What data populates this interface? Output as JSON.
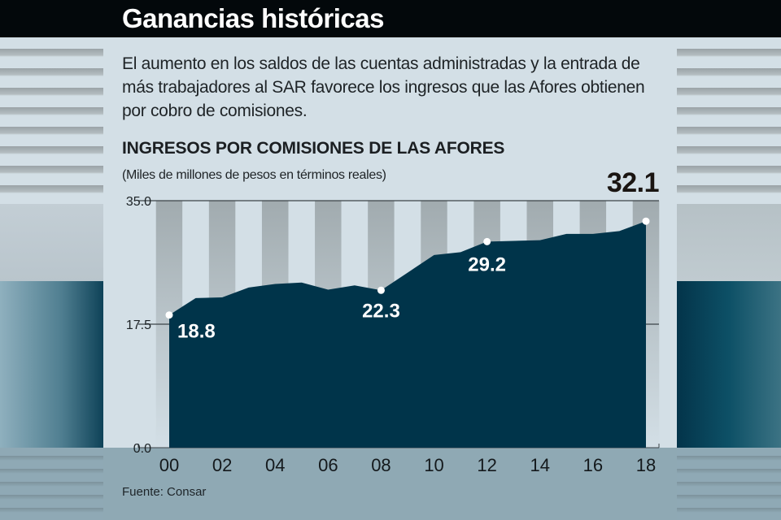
{
  "header": {
    "title": "Ganancias históricas"
  },
  "intro": "El aumento en los saldos de las cuentas administradas y la entrada de más trabajadores al SAR favorece los ingresos que las Afores obtienen por cobro de comisiones.",
  "source": {
    "label": "Fuente:",
    "value": "Consar"
  },
  "colors": {
    "area_fill": "#00344a",
    "stripe_dark": "#a1abaf",
    "stripe_light": "#d3dfe6",
    "label_text": "#ffffff",
    "header_bg": "#03080b"
  },
  "chart_data": {
    "type": "area",
    "title": "INGRESOS POR COMISIONES DE LAS AFORES",
    "subtitle": "(Miles de millones de pesos en términos reales)",
    "xlabel": "",
    "ylabel": "",
    "x": [
      2000,
      2001,
      2002,
      2003,
      2004,
      2005,
      2006,
      2007,
      2008,
      2009,
      2010,
      2011,
      2012,
      2013,
      2014,
      2015,
      2016,
      2017,
      2018
    ],
    "series": [
      {
        "name": "Ingresos por comisiones",
        "values": [
          18.8,
          21.2,
          21.3,
          22.7,
          23.2,
          23.4,
          22.4,
          23.0,
          22.3,
          24.8,
          27.3,
          27.7,
          29.2,
          29.3,
          29.4,
          30.3,
          30.3,
          30.7,
          32.1
        ]
      }
    ],
    "ylim": [
      0,
      35
    ],
    "xlim": [
      2000,
      2018
    ],
    "yticks": [
      "0.0",
      "17.5",
      "35.0"
    ],
    "ytick_values": [
      0,
      17.5,
      35
    ],
    "xticks": [
      "00",
      "02",
      "04",
      "06",
      "08",
      "10",
      "12",
      "14",
      "16",
      "18"
    ],
    "xtick_values": [
      2000,
      2002,
      2004,
      2006,
      2008,
      2010,
      2012,
      2014,
      2016,
      2018
    ],
    "annotations": [
      {
        "x": 2000,
        "value": 18.8,
        "label": "18.8"
      },
      {
        "x": 2008,
        "value": 22.3,
        "label": "22.3"
      },
      {
        "x": 2012,
        "value": 29.2,
        "label": "29.2"
      },
      {
        "x": 2018,
        "value": 32.1,
        "label": "32.1"
      }
    ],
    "highlight_last_value": "32.1",
    "grid": false,
    "legend": "none"
  }
}
